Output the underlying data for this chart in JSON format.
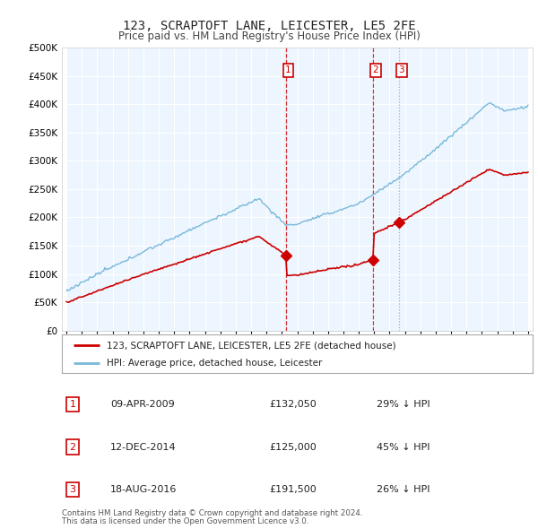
{
  "title": "123, SCRAPTOFT LANE, LEICESTER, LE5 2FE",
  "subtitle": "Price paid vs. HM Land Registry's House Price Index (HPI)",
  "hpi_color": "#7ab8d9",
  "property_color": "#cc0000",
  "background_color": "#ffffff",
  "plot_bg_color": "#ffffff",
  "plot_fill_color": "#ddeeff",
  "ylim": [
    0,
    500000
  ],
  "yticks": [
    0,
    50000,
    100000,
    150000,
    200000,
    250000,
    300000,
    350000,
    400000,
    450000,
    500000
  ],
  "ytick_labels": [
    "£0",
    "£50K",
    "£100K",
    "£150K",
    "£200K",
    "£250K",
    "£300K",
    "£350K",
    "£400K",
    "£450K",
    "£500K"
  ],
  "sale_years": [
    2009.27,
    2014.95,
    2016.63
  ],
  "sale_prices": [
    132050,
    125000,
    191500
  ],
  "sale_labels": [
    "1",
    "2",
    "3"
  ],
  "sale_line_colors": [
    "#cc0000",
    "#cc0000",
    "#999999"
  ],
  "sale_line_styles": [
    "--",
    "--",
    ":"
  ],
  "legend_property": "123, SCRAPTOFT LANE, LEICESTER, LE5 2FE (detached house)",
  "legend_hpi": "HPI: Average price, detached house, Leicester",
  "footer1": "Contains HM Land Registry data © Crown copyright and database right 2024.",
  "footer2": "This data is licensed under the Open Government Licence v3.0.",
  "table_dates": [
    "09-APR-2009",
    "12-DEC-2014",
    "18-AUG-2016"
  ],
  "table_prices": [
    "£132,050",
    "£125,000",
    "£191,500"
  ],
  "table_pcts": [
    "29% ↓ HPI",
    "45% ↓ HPI",
    "26% ↓ HPI"
  ]
}
